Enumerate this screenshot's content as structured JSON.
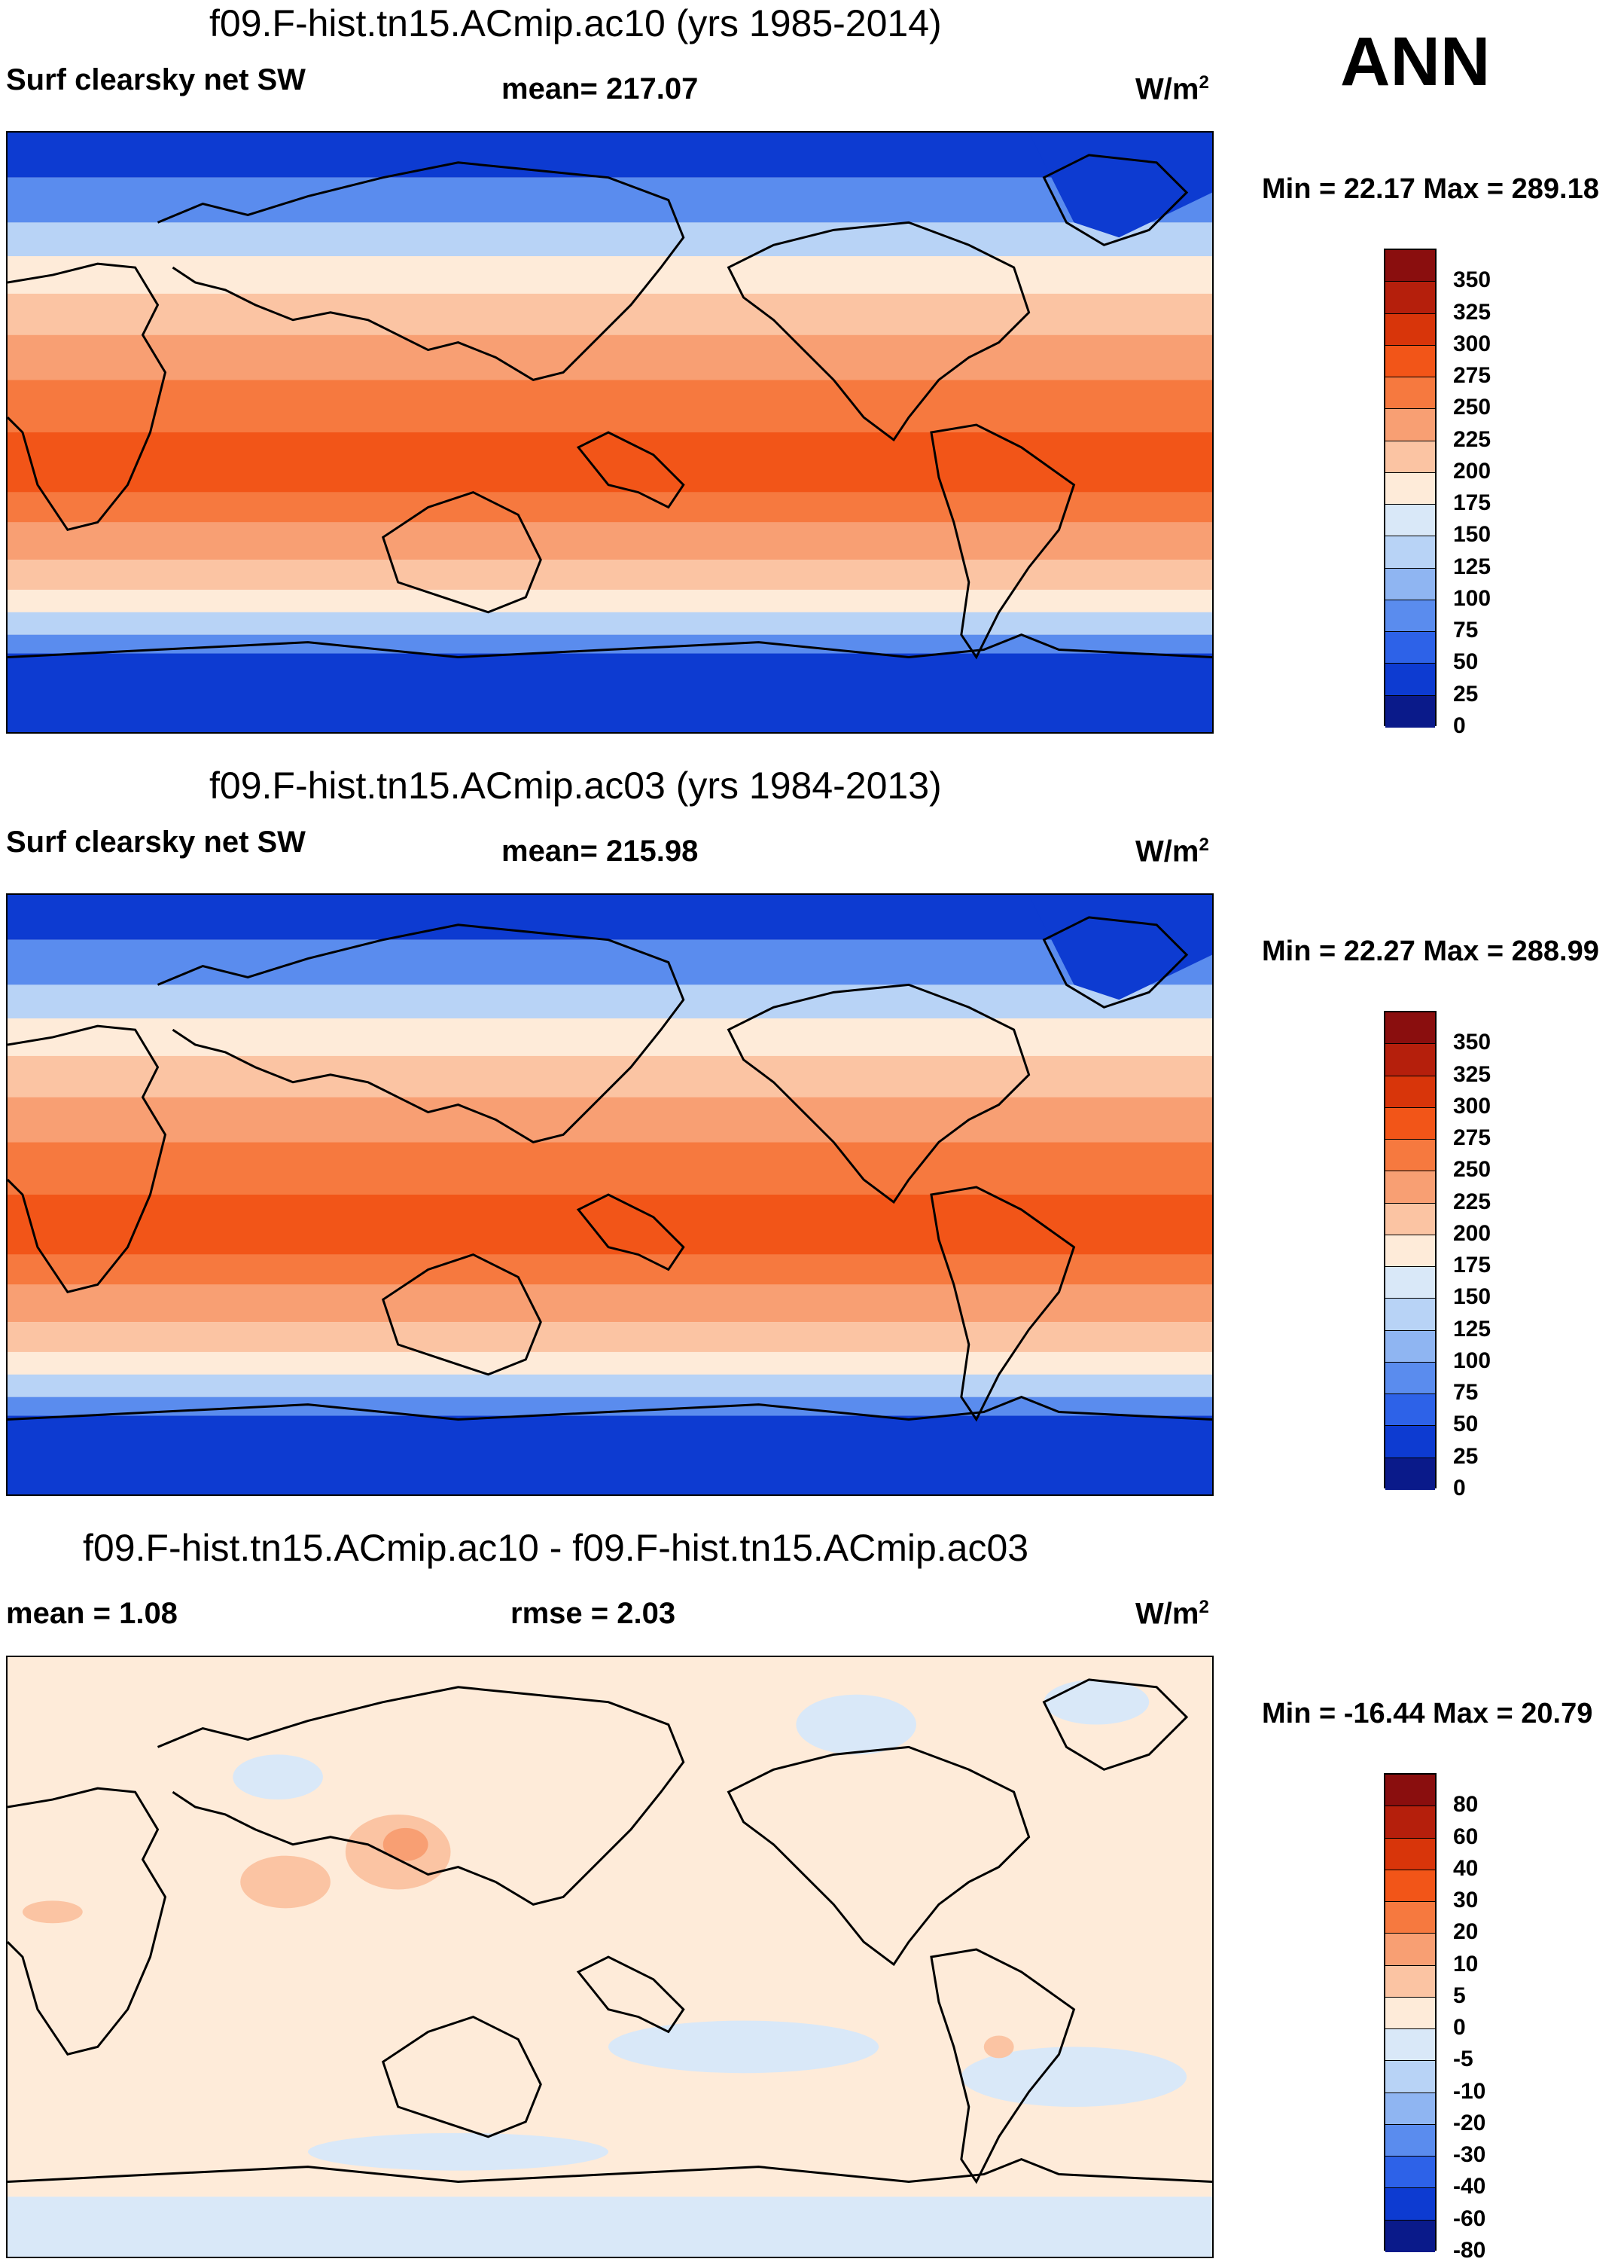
{
  "season": "ANN",
  "unit_base": "W/m",
  "unit_exp": "2",
  "panels": [
    {
      "title": "f09.F-hist.tn15.ACmip.ac10 (yrs 1985-2014)",
      "variable": "Surf clearsky net SW",
      "stat": "mean= 217.07",
      "minmax": "Min =  22.17 Max = 289.18",
      "levels": [
        "350",
        "325",
        "300",
        "275",
        "250",
        "225",
        "200",
        "175",
        "150",
        "125",
        "100",
        "75",
        "50",
        "25",
        "0"
      ],
      "colors": [
        "#8a0e0e",
        "#b51f0c",
        "#d8350a",
        "#f25518",
        "#f6793f",
        "#f89f73",
        "#fbc4a3",
        "#feebd9",
        "#d9e8f8",
        "#b8d3f6",
        "#8fb5f2",
        "#5a8cee",
        "#2d62e8",
        "#0d3bd1",
        "#0a1a8a"
      ]
    },
    {
      "title": "f09.F-hist.tn15.ACmip.ac03 (yrs 1984-2013)",
      "variable": "Surf clearsky net SW",
      "stat": "mean= 215.98",
      "minmax": "Min =  22.27 Max = 288.99",
      "levels": [
        "350",
        "325",
        "300",
        "275",
        "250",
        "225",
        "200",
        "175",
        "150",
        "125",
        "100",
        "75",
        "50",
        "25",
        "0"
      ],
      "colors": [
        "#8a0e0e",
        "#b51f0c",
        "#d8350a",
        "#f25518",
        "#f6793f",
        "#f89f73",
        "#fbc4a3",
        "#feebd9",
        "#d9e8f8",
        "#b8d3f6",
        "#8fb5f2",
        "#5a8cee",
        "#2d62e8",
        "#0d3bd1",
        "#0a1a8a"
      ]
    },
    {
      "title": "f09.F-hist.tn15.ACmip.ac10 - f09.F-hist.tn15.ACmip.ac03",
      "stat_left": "mean =   1.08",
      "stat_mid": "rmse =   2.03",
      "minmax": "Min = -16.44 Max =  20.79",
      "levels": [
        "80",
        "60",
        "40",
        "30",
        "20",
        "10",
        "5",
        "0",
        "-5",
        "-10",
        "-20",
        "-30",
        "-40",
        "-60",
        "-80"
      ],
      "colors": [
        "#8a0e0e",
        "#b51f0c",
        "#d8350a",
        "#f25518",
        "#f6793f",
        "#f89f73",
        "#fbc4a3",
        "#feebd9",
        "#d9e8f8",
        "#b8d3f6",
        "#8fb5f2",
        "#5a8cee",
        "#2d62e8",
        "#0d3bd1",
        "#0a1a8a"
      ]
    }
  ],
  "map_palette": {
    "ocean_background_diff": "#fde8d6",
    "coast": "#000000"
  }
}
